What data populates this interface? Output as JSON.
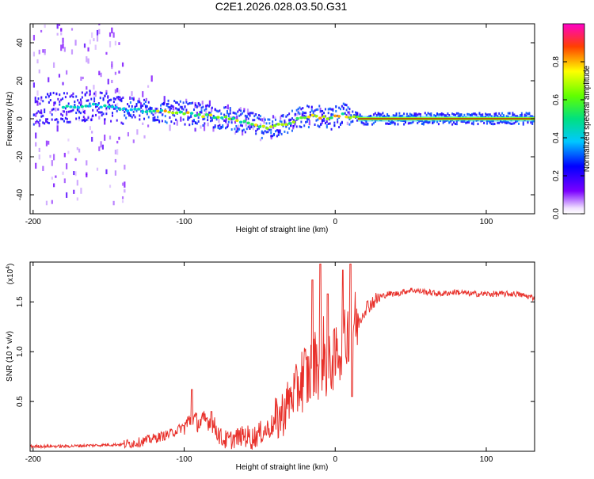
{
  "title": "C2E1.2026.028.03.50.G31",
  "colors": {
    "snr_line": "#e8302a",
    "trace_line": "#c00000"
  },
  "chart_data": [
    {
      "type": "heatmap",
      "name": "spectrogram",
      "xlabel": "Height of straight line (km)",
      "ylabel": "Frequency (Hz)",
      "xlim": [
        -202,
        132
      ],
      "ylim": [
        -50,
        50
      ],
      "xticks": [
        "-200",
        "-100",
        "0",
        "100"
      ],
      "yticks": [
        "-40",
        "-20",
        "0",
        "20",
        "40"
      ],
      "colorbar": {
        "label": "Normalized spectral amplitude",
        "range": [
          0,
          1
        ],
        "ticks": [
          "0.0",
          "0.2",
          "0.4",
          "0.6",
          "0.8"
        ]
      },
      "ridge": {
        "x": [
          -200,
          -180,
          -160,
          -150,
          -140,
          -120,
          -100,
          -90,
          -80,
          -70,
          -60,
          -50,
          -45,
          -40,
          -35,
          -30,
          -25,
          -20,
          -15,
          -10,
          -5,
          0,
          5,
          10,
          20,
          40,
          60,
          80,
          100,
          132
        ],
        "y": [
          5,
          6,
          7,
          6,
          5,
          4,
          3,
          2,
          1,
          0,
          -2,
          -4,
          -5,
          -4,
          -3,
          -2,
          0,
          1,
          2,
          1,
          0,
          1,
          2,
          1,
          0,
          0,
          0,
          0,
          0,
          0
        ]
      }
    },
    {
      "type": "line",
      "name": "snr",
      "xlabel": "Height of straight line (km)",
      "ylabel": "SNR (10 * v/v)",
      "yscale_label": "(x10",
      "yscale_exp": "4",
      "scale_factor": 10000,
      "xlim": [
        -202,
        132
      ],
      "ylim": [
        0,
        1.9
      ],
      "xticks": [
        "-200",
        "-100",
        "0",
        "100"
      ],
      "yticks": [
        "0.5",
        "1.0",
        "1.5"
      ],
      "series": [
        {
          "x": [
            -202,
            -180,
            -160,
            -140,
            -130,
            -120,
            -110,
            -100,
            -95,
            -90,
            -85,
            -80,
            -75,
            -70,
            -65,
            -60,
            -55,
            -50,
            -45,
            -40,
            -35,
            -30,
            -25,
            -20,
            -18,
            -15,
            -12,
            -10,
            -8,
            -5,
            -2,
            0,
            2,
            5,
            10,
            15,
            20,
            25,
            30,
            35,
            40,
            50,
            60,
            70,
            80,
            90,
            100,
            110,
            120,
            132
          ],
          "y": [
            0.05,
            0.05,
            0.06,
            0.07,
            0.09,
            0.13,
            0.17,
            0.25,
            0.33,
            0.28,
            0.32,
            0.25,
            0.12,
            0.11,
            0.14,
            0.16,
            0.13,
            0.18,
            0.22,
            0.28,
            0.38,
            0.52,
            0.65,
            0.78,
            0.72,
            0.85,
            0.95,
            0.7,
            1.05,
            0.75,
            0.95,
            0.88,
            1.05,
            1.0,
            1.3,
            1.28,
            1.44,
            1.5,
            1.55,
            1.58,
            1.58,
            1.62,
            1.6,
            1.58,
            1.6,
            1.58,
            1.58,
            1.58,
            1.58,
            1.54
          ],
          "spikes": [
            [
              -95,
              0.62
            ],
            [
              -82,
              0.4
            ],
            [
              -15,
              1.72
            ],
            [
              -10,
              1.88
            ],
            [
              -5,
              1.58
            ],
            [
              5,
              1.82
            ],
            [
              10,
              1.88
            ],
            [
              11,
              0.55
            ]
          ]
        }
      ]
    }
  ]
}
